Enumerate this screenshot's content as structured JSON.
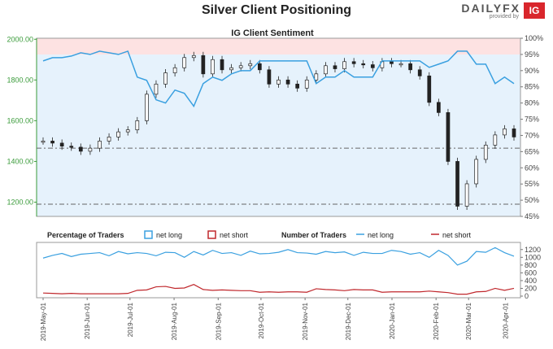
{
  "page": {
    "title": "Silver Client Positioning"
  },
  "logo": {
    "brand": "DAILYFX",
    "sub": "provided by",
    "badge": "IG"
  },
  "chart_data": [
    {
      "type": "candlestick-line",
      "title": "IG Client Sentiment",
      "left_axis": {
        "ticks": [
          1200,
          1400,
          1600,
          1800,
          2000
        ],
        "labels": [
          "1200.00",
          "1400.00",
          "1600.00",
          "1800.00",
          "2000.00"
        ],
        "range": [
          1130,
          2005
        ]
      },
      "right_axis": {
        "ticks": [
          45,
          50,
          55,
          60,
          65,
          70,
          75,
          80,
          85,
          90,
          95,
          100
        ],
        "labels": [
          "45%",
          "50%",
          "55%",
          "60%",
          "65%",
          "70%",
          "75%",
          "80%",
          "85%",
          "90%",
          "95%",
          "100%"
        ],
        "range": [
          45,
          100
        ]
      },
      "reference_lines": [
        1465,
        1190
      ],
      "price_series": {
        "x": [
          0,
          2,
          4,
          6,
          8,
          10,
          12,
          14,
          16,
          18,
          20,
          22,
          24,
          26,
          28,
          30,
          32,
          34,
          36,
          38,
          40,
          42,
          44,
          46,
          48,
          50,
          52,
          54,
          56,
          58,
          60,
          62,
          64,
          66,
          68,
          70,
          72,
          74,
          76,
          78,
          80,
          82,
          84,
          86,
          88,
          90,
          92,
          94,
          96,
          98,
          100
        ],
        "y": [
          1500,
          1490,
          1475,
          1470,
          1450,
          1465,
          1500,
          1520,
          1545,
          1555,
          1600,
          1730,
          1780,
          1835,
          1860,
          1910,
          1920,
          1830,
          1900,
          1850,
          1860,
          1870,
          1880,
          1850,
          1780,
          1800,
          1780,
          1760,
          1800,
          1830,
          1870,
          1855,
          1890,
          1880,
          1875,
          1860,
          1890,
          1880,
          1880,
          1850,
          1820,
          1690,
          1640,
          1400,
          1180,
          1290,
          1410,
          1480,
          1530,
          1560,
          1520
        ]
      },
      "long_pct_series": {
        "x": [
          0,
          2,
          4,
          6,
          8,
          10,
          12,
          14,
          16,
          18,
          20,
          22,
          24,
          26,
          28,
          30,
          32,
          34,
          36,
          38,
          40,
          42,
          44,
          46,
          48,
          50,
          52,
          54,
          56,
          58,
          60,
          62,
          64,
          66,
          68,
          70,
          72,
          74,
          76,
          78,
          80,
          82,
          84,
          86,
          88,
          90,
          92,
          94,
          96,
          98,
          100
        ],
        "y": [
          93,
          94,
          94,
          94.5,
          95.5,
          95,
          96,
          95.5,
          95,
          96,
          88,
          87,
          81,
          80,
          84,
          83,
          79,
          86,
          88,
          87,
          89,
          90,
          90,
          93,
          93,
          93,
          93,
          93,
          93,
          86,
          88,
          88,
          90,
          88,
          88,
          88,
          93,
          93,
          93,
          93,
          93,
          91,
          92,
          93,
          96,
          96,
          92,
          92,
          86,
          88,
          86
        ]
      }
    },
    {
      "type": "line",
      "title": "",
      "legend": {
        "pct_label": "Percentage of Traders",
        "pct_long": "net long",
        "pct_short": "net short",
        "num_label": "Number of Traders",
        "num_long": "net long",
        "num_short": "net short"
      },
      "right_axis": {
        "ticks": [
          0,
          200,
          400,
          600,
          800,
          1000,
          1200
        ],
        "labels": [
          "0",
          "200",
          "400",
          "600",
          "800",
          "1000",
          "1200"
        ],
        "range": [
          0,
          1300
        ]
      },
      "long_traders": {
        "x": [
          0,
          2,
          4,
          6,
          8,
          10,
          12,
          14,
          16,
          18,
          20,
          22,
          24,
          26,
          28,
          30,
          32,
          34,
          36,
          38,
          40,
          42,
          44,
          46,
          48,
          50,
          52,
          54,
          56,
          58,
          60,
          62,
          64,
          66,
          68,
          70,
          72,
          74,
          76,
          78,
          80,
          82,
          84,
          86,
          88,
          90,
          92,
          94,
          96,
          98,
          100
        ],
        "y": [
          980,
          1050,
          1100,
          1020,
          1080,
          1100,
          1120,
          1040,
          1150,
          1090,
          1120,
          1100,
          1040,
          1130,
          1120,
          1000,
          1150,
          1060,
          1180,
          1100,
          1120,
          1050,
          1160,
          1090,
          1100,
          1130,
          1200,
          1120,
          1110,
          1080,
          1150,
          1120,
          1140,
          1050,
          1130,
          1100,
          1100,
          1180,
          1150,
          1080,
          1120,
          1000,
          1180,
          1050,
          800,
          900,
          1150,
          1130,
          1250,
          1120,
          1030
        ]
      },
      "short_traders": {
        "x": [
          0,
          2,
          4,
          6,
          8,
          10,
          12,
          14,
          16,
          18,
          20,
          22,
          24,
          26,
          28,
          30,
          32,
          34,
          36,
          38,
          40,
          42,
          44,
          46,
          48,
          50,
          52,
          54,
          56,
          58,
          60,
          62,
          64,
          66,
          68,
          70,
          72,
          74,
          76,
          78,
          80,
          82,
          84,
          86,
          88,
          90,
          92,
          94,
          96,
          98,
          100
        ],
        "y": [
          80,
          70,
          60,
          70,
          60,
          60,
          60,
          60,
          60,
          70,
          150,
          160,
          240,
          250,
          200,
          210,
          300,
          170,
          150,
          160,
          150,
          140,
          140,
          100,
          110,
          100,
          110,
          110,
          100,
          190,
          170,
          160,
          140,
          170,
          160,
          160,
          100,
          110,
          110,
          110,
          110,
          130,
          110,
          90,
          50,
          50,
          110,
          120,
          200,
          150,
          200
        ]
      },
      "x_labels": [
        "2019-May-01",
        "2019-Jun-01",
        "2019-Jul-01",
        "2019-Aug-01",
        "2019-Sep-01",
        "2019-Oct-01",
        "2019-Nov-01",
        "2019-Dec-01",
        "2020-Jan-01",
        "2020-Feb-01",
        "2020-Mar-01",
        "2020-Apr-01"
      ],
      "x_label_positions": [
        0,
        10.3,
        20.3,
        30.6,
        40.9,
        50.9,
        61.2,
        71.2,
        81.5,
        91.8,
        99.4,
        108
      ]
    }
  ]
}
